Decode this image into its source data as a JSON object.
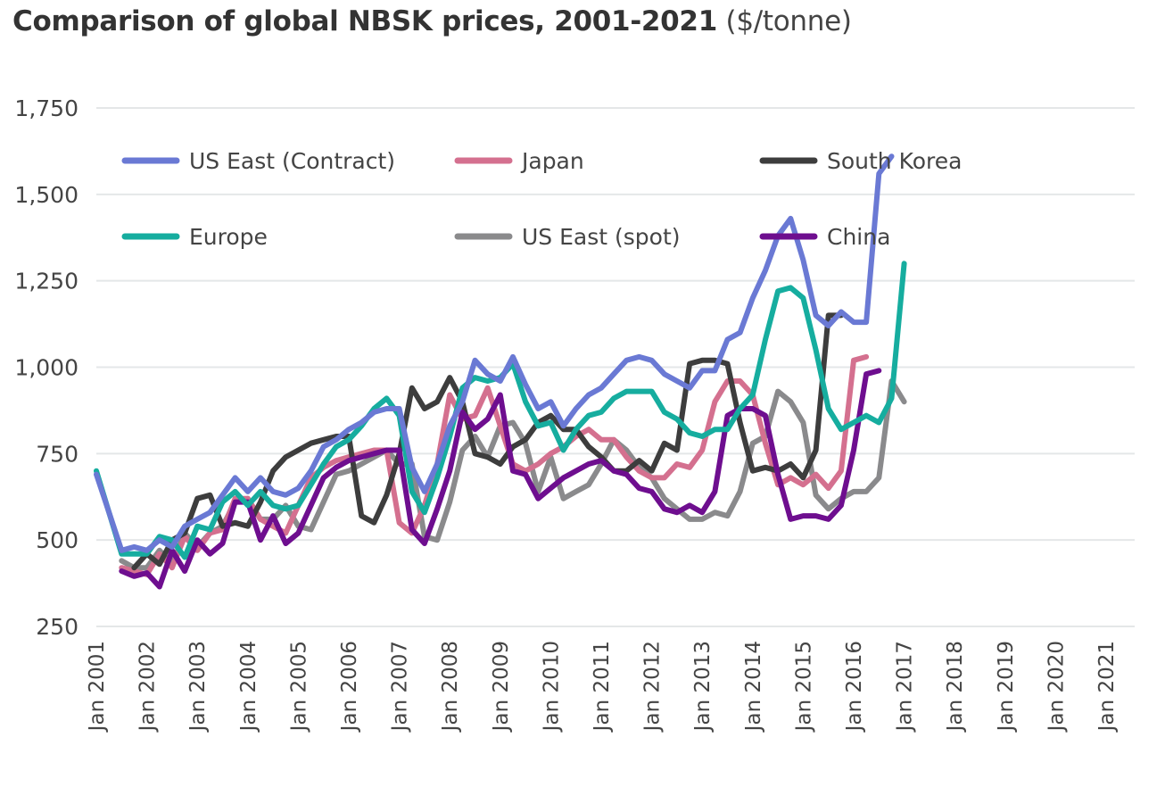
{
  "chart_data": {
    "type": "line",
    "title": "Comparison of global NBSK prices, 2001-2021",
    "title_unit": "($/tonne)",
    "xlabel": "",
    "ylabel": "",
    "ylim": [
      250,
      1750
    ],
    "yticks": [
      250,
      500,
      750,
      1000,
      1250,
      1500,
      1750
    ],
    "ytick_labels": [
      "250",
      "500",
      "750",
      "1,000",
      "1,250",
      "1,500",
      "1,750"
    ],
    "xtick_labels": [
      "Jan 2001",
      "Jan 2002",
      "Jan 2003",
      "Jan 2004",
      "Jan 2005",
      "Jan 2006",
      "Jan 2007",
      "Jan 2008",
      "Jan 2009",
      "Jan 2010",
      "Jan 2011",
      "Jan 2012",
      "Jan 2013",
      "Jan 2014",
      "Jan 2015",
      "Jan 2016",
      "Jan 2017",
      "Jan 2018",
      "Jan 2019",
      "Jan 2020",
      "Jan 2021"
    ],
    "x_start_year": 2001,
    "x_step": "quarterly",
    "grid": "horizontal",
    "legend_placement": "top-left",
    "series": [
      {
        "name": "US East (Contract)",
        "color": "#6a79d4",
        "start_index": 0,
        "values": [
          690,
          580,
          470,
          480,
          470,
          500,
          480,
          540,
          560,
          580,
          630,
          680,
          640,
          680,
          640,
          630,
          650,
          700,
          770,
          790,
          820,
          840,
          870,
          880,
          880,
          710,
          640,
          720,
          830,
          900,
          1020,
          980,
          960,
          1030,
          950,
          880,
          900,
          830,
          880,
          920,
          940,
          980,
          1020,
          1030,
          1020,
          980,
          960,
          940,
          990,
          990,
          1080,
          1100,
          1200,
          1280,
          1380,
          1430,
          1310,
          1150,
          1120,
          1160,
          1130,
          1130,
          1560,
          1610
        ]
      },
      {
        "name": "Japan",
        "color": "#d4708f",
        "start_index": 2,
        "values": [
          420,
          410,
          400,
          460,
          420,
          510,
          470,
          520,
          530,
          620,
          620,
          560,
          540,
          520,
          600,
          680,
          710,
          730,
          740,
          750,
          760,
          760,
          550,
          520,
          600,
          720,
          920,
          850,
          860,
          940,
          830,
          720,
          700,
          720,
          750,
          770,
          800,
          820,
          790,
          790,
          740,
          700,
          680,
          680,
          720,
          710,
          760,
          900,
          960,
          960,
          920,
          780,
          660,
          680,
          660,
          690,
          650,
          700,
          1020,
          1030
        ]
      },
      {
        "name": "South Korea",
        "color": "#3d3d3d",
        "start_index": 3,
        "values": [
          420,
          460,
          430,
          500,
          520,
          620,
          630,
          540,
          550,
          540,
          610,
          700,
          740,
          760,
          780,
          790,
          800,
          800,
          570,
          550,
          630,
          750,
          940,
          880,
          900,
          970,
          900,
          750,
          740,
          720,
          770,
          790,
          840,
          860,
          820,
          820,
          770,
          740,
          700,
          700,
          730,
          700,
          780,
          760,
          1010,
          1020,
          1020,
          1010,
          840,
          700,
          710,
          700,
          720,
          680,
          760,
          1150,
          1150
        ]
      },
      {
        "name": "Europe",
        "color": "#16ad9f",
        "start_index": 0,
        "values": [
          700,
          580,
          460,
          460,
          460,
          510,
          500,
          450,
          540,
          530,
          610,
          640,
          600,
          640,
          600,
          590,
          600,
          660,
          720,
          770,
          790,
          830,
          880,
          910,
          860,
          640,
          580,
          680,
          800,
          940,
          970,
          960,
          970,
          1010,
          900,
          830,
          840,
          760,
          820,
          860,
          870,
          910,
          930,
          930,
          930,
          870,
          850,
          810,
          800,
          820,
          820,
          880,
          920,
          1080,
          1220,
          1230,
          1200,
          1050,
          880,
          820,
          840,
          860,
          840,
          910,
          1300
        ]
      },
      {
        "name": "US East (spot)",
        "color": "#8a8a8c",
        "start_index": 2,
        "values": [
          440,
          420,
          420,
          470,
          430,
          520,
          480,
          520,
          540,
          610,
          620,
          560,
          560,
          600,
          540,
          530,
          610,
          690,
          700,
          720,
          740,
          760,
          720,
          720,
          510,
          500,
          610,
          760,
          800,
          740,
          830,
          840,
          780,
          640,
          740,
          620,
          640,
          660,
          720,
          790,
          760,
          710,
          680,
          620,
          590,
          560,
          560,
          580,
          570,
          640,
          780,
          800,
          930,
          900,
          840,
          630,
          590,
          620,
          640,
          640,
          680,
          960,
          900
        ]
      },
      {
        "name": "China",
        "color": "#6e0e8f",
        "start_index": 2,
        "values": [
          410,
          395,
          405,
          365,
          470,
          410,
          500,
          460,
          490,
          610,
          610,
          500,
          570,
          490,
          520,
          600,
          680,
          710,
          730,
          740,
          750,
          760,
          760,
          530,
          490,
          590,
          700,
          870,
          820,
          850,
          920,
          700,
          690,
          620,
          650,
          680,
          700,
          720,
          730,
          700,
          690,
          650,
          640,
          590,
          580,
          600,
          580,
          640,
          860,
          880,
          880,
          860,
          690,
          560,
          570,
          570,
          560,
          600,
          760,
          980,
          990
        ]
      }
    ]
  }
}
